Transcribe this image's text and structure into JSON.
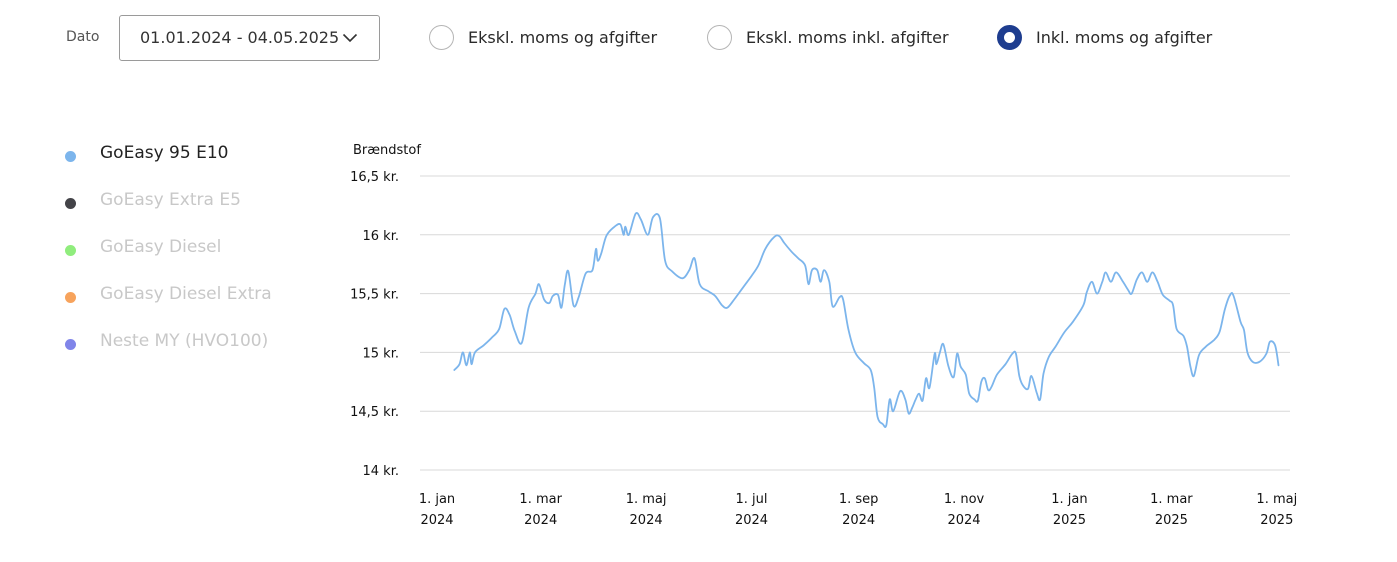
{
  "toolbar": {
    "date_label": "Dato",
    "date_range_value": "01.01.2024 - 04.05.2025",
    "date_dropdown_icon": "chevron-down-icon",
    "radio_options": [
      {
        "label": "Ekskl. moms og afgifter",
        "checked": false
      },
      {
        "label": "Ekskl. moms inkl. afgifter",
        "checked": false
      },
      {
        "label": "Inkl. moms og afgifter",
        "checked": true
      }
    ],
    "accent_color": "#1e3d8f"
  },
  "legend": [
    {
      "label": "GoEasy 95 E10",
      "color": "#7cb5ec",
      "active": true
    },
    {
      "label": "GoEasy Extra E5",
      "color": "#434348",
      "active": false
    },
    {
      "label": "GoEasy Diesel",
      "color": "#90ed7d",
      "active": false
    },
    {
      "label": "GoEasy Diesel Extra",
      "color": "#f7a35c",
      "active": false
    },
    {
      "label": "Neste MY (HVO100)",
      "color": "#8085e9",
      "active": false
    }
  ],
  "chart_data": {
    "type": "line",
    "title": "Brændstof",
    "ylim": [
      14,
      16.5
    ],
    "yticks": [
      {
        "value": 16.5,
        "label": "16,5 kr."
      },
      {
        "value": 16,
        "label": "16 kr."
      },
      {
        "value": 15.5,
        "label": "15,5 kr."
      },
      {
        "value": 15,
        "label": "15 kr."
      },
      {
        "value": 14.5,
        "label": "14,5 kr."
      },
      {
        "value": 14,
        "label": "14 kr."
      }
    ],
    "xlim": [
      "2024-01-01",
      "2025-05-04"
    ],
    "xticks": [
      {
        "date": "2024-01-01",
        "label": [
          "1. jan",
          "2024"
        ]
      },
      {
        "date": "2024-03-01",
        "label": [
          "1. mar",
          "2024"
        ]
      },
      {
        "date": "2024-05-01",
        "label": [
          "1. maj",
          "2024"
        ]
      },
      {
        "date": "2024-07-01",
        "label": [
          "1. jul",
          "2024"
        ]
      },
      {
        "date": "2024-09-01",
        "label": [
          "1. sep",
          "2024"
        ]
      },
      {
        "date": "2024-11-01",
        "label": [
          "1. nov",
          "2024"
        ]
      },
      {
        "date": "2025-01-01",
        "label": [
          "1. jan",
          "2025"
        ]
      },
      {
        "date": "2025-03-01",
        "label": [
          "1. mar",
          "2025"
        ]
      },
      {
        "date": "2025-05-01",
        "label": [
          "1. maj",
          "2025"
        ]
      }
    ],
    "grid": true,
    "series": [
      {
        "name": "GoEasy 95 E10",
        "color": "#7cb5ec",
        "points": [
          [
            "2024-01-11",
            14.85
          ],
          [
            "2024-01-14",
            14.9
          ],
          [
            "2024-01-16",
            15.0
          ],
          [
            "2024-01-18",
            14.89
          ],
          [
            "2024-01-20",
            15.0
          ],
          [
            "2024-01-21",
            14.9
          ],
          [
            "2024-01-23",
            15.0
          ],
          [
            "2024-01-28",
            15.06
          ],
          [
            "2024-02-02",
            15.13
          ],
          [
            "2024-02-06",
            15.2
          ],
          [
            "2024-02-09",
            15.37
          ],
          [
            "2024-02-12",
            15.32
          ],
          [
            "2024-02-15",
            15.18
          ],
          [
            "2024-02-19",
            15.08
          ],
          [
            "2024-02-23",
            15.38
          ],
          [
            "2024-02-27",
            15.5
          ],
          [
            "2024-02-29",
            15.58
          ],
          [
            "2024-03-03",
            15.45
          ],
          [
            "2024-03-06",
            15.42
          ],
          [
            "2024-03-08",
            15.48
          ],
          [
            "2024-03-11",
            15.49
          ],
          [
            "2024-03-13",
            15.38
          ],
          [
            "2024-03-15",
            15.58
          ],
          [
            "2024-03-17",
            15.69
          ],
          [
            "2024-03-20",
            15.4
          ],
          [
            "2024-03-23",
            15.47
          ],
          [
            "2024-03-27",
            15.67
          ],
          [
            "2024-03-31",
            15.7
          ],
          [
            "2024-04-02",
            15.88
          ],
          [
            "2024-04-03",
            15.78
          ],
          [
            "2024-04-05",
            15.84
          ],
          [
            "2024-04-08",
            15.99
          ],
          [
            "2024-04-12",
            16.06
          ],
          [
            "2024-04-16",
            16.09
          ],
          [
            "2024-04-18",
            16.0
          ],
          [
            "2024-04-19",
            16.07
          ],
          [
            "2024-04-21",
            16.0
          ],
          [
            "2024-04-25",
            16.18
          ],
          [
            "2024-04-28",
            16.13
          ],
          [
            "2024-05-02",
            16.0
          ],
          [
            "2024-05-05",
            16.15
          ],
          [
            "2024-05-09",
            16.14
          ],
          [
            "2024-05-12",
            15.78
          ],
          [
            "2024-05-16",
            15.69
          ],
          [
            "2024-05-22",
            15.63
          ],
          [
            "2024-05-26",
            15.7
          ],
          [
            "2024-05-29",
            15.8
          ],
          [
            "2024-06-01",
            15.58
          ],
          [
            "2024-06-06",
            15.52
          ],
          [
            "2024-06-10",
            15.48
          ],
          [
            "2024-06-14",
            15.4
          ],
          [
            "2024-06-17",
            15.38
          ],
          [
            "2024-06-21",
            15.45
          ],
          [
            "2024-06-26",
            15.55
          ],
          [
            "2024-07-01",
            15.65
          ],
          [
            "2024-07-05",
            15.74
          ],
          [
            "2024-07-09",
            15.88
          ],
          [
            "2024-07-14",
            15.98
          ],
          [
            "2024-07-17",
            15.99
          ],
          [
            "2024-07-20",
            15.93
          ],
          [
            "2024-07-24",
            15.86
          ],
          [
            "2024-07-28",
            15.8
          ],
          [
            "2024-08-01",
            15.74
          ],
          [
            "2024-08-03",
            15.58
          ],
          [
            "2024-08-05",
            15.7
          ],
          [
            "2024-08-08",
            15.7
          ],
          [
            "2024-08-10",
            15.6
          ],
          [
            "2024-08-12",
            15.7
          ],
          [
            "2024-08-15",
            15.6
          ],
          [
            "2024-08-17",
            15.39
          ],
          [
            "2024-08-21",
            15.47
          ],
          [
            "2024-08-23",
            15.45
          ],
          [
            "2024-08-26",
            15.2
          ],
          [
            "2024-08-30",
            15.0
          ],
          [
            "2024-09-04",
            14.91
          ],
          [
            "2024-09-08",
            14.85
          ],
          [
            "2024-09-10",
            14.7
          ],
          [
            "2024-09-12",
            14.45
          ],
          [
            "2024-09-15",
            14.39
          ],
          [
            "2024-09-17",
            14.38
          ],
          [
            "2024-09-19",
            14.6
          ],
          [
            "2024-09-21",
            14.5
          ],
          [
            "2024-09-25",
            14.67
          ],
          [
            "2024-09-28",
            14.6
          ],
          [
            "2024-09-30",
            14.48
          ],
          [
            "2024-10-02",
            14.53
          ],
          [
            "2024-10-04",
            14.6
          ],
          [
            "2024-10-06",
            14.65
          ],
          [
            "2024-10-08",
            14.59
          ],
          [
            "2024-10-10",
            14.78
          ],
          [
            "2024-10-12",
            14.7
          ],
          [
            "2024-10-15",
            14.99
          ],
          [
            "2024-10-16",
            14.9
          ],
          [
            "2024-10-18",
            15.0
          ],
          [
            "2024-10-20",
            15.07
          ],
          [
            "2024-10-23",
            14.88
          ],
          [
            "2024-10-26",
            14.79
          ],
          [
            "2024-10-28",
            14.99
          ],
          [
            "2024-10-30",
            14.88
          ],
          [
            "2024-11-02",
            14.81
          ],
          [
            "2024-11-04",
            14.65
          ],
          [
            "2024-11-07",
            14.6
          ],
          [
            "2024-11-09",
            14.59
          ],
          [
            "2024-11-11",
            14.75
          ],
          [
            "2024-11-13",
            14.78
          ],
          [
            "2024-11-15",
            14.68
          ],
          [
            "2024-11-17",
            14.71
          ],
          [
            "2024-11-20",
            14.81
          ],
          [
            "2024-11-25",
            14.9
          ],
          [
            "2024-11-29",
            14.99
          ],
          [
            "2024-12-01",
            14.99
          ],
          [
            "2024-12-03",
            14.8
          ],
          [
            "2024-12-05",
            14.72
          ],
          [
            "2024-12-08",
            14.69
          ],
          [
            "2024-12-10",
            14.8
          ],
          [
            "2024-12-13",
            14.66
          ],
          [
            "2024-12-15",
            14.6
          ],
          [
            "2024-12-17",
            14.82
          ],
          [
            "2024-12-20",
            14.96
          ],
          [
            "2024-12-24",
            15.05
          ],
          [
            "2024-12-29",
            15.17
          ],
          [
            "2025-01-03",
            15.26
          ],
          [
            "2025-01-09",
            15.4
          ],
          [
            "2025-01-11",
            15.51
          ],
          [
            "2025-01-14",
            15.6
          ],
          [
            "2025-01-17",
            15.5
          ],
          [
            "2025-01-20",
            15.6
          ],
          [
            "2025-01-22",
            15.68
          ],
          [
            "2025-01-25",
            15.6
          ],
          [
            "2025-01-28",
            15.68
          ],
          [
            "2025-02-01",
            15.6
          ],
          [
            "2025-02-04",
            15.53
          ],
          [
            "2025-02-06",
            15.5
          ],
          [
            "2025-02-09",
            15.62
          ],
          [
            "2025-02-12",
            15.68
          ],
          [
            "2025-02-15",
            15.6
          ],
          [
            "2025-02-18",
            15.68
          ],
          [
            "2025-02-21",
            15.6
          ],
          [
            "2025-02-24",
            15.49
          ],
          [
            "2025-02-28",
            15.44
          ],
          [
            "2025-03-02",
            15.4
          ],
          [
            "2025-03-04",
            15.2
          ],
          [
            "2025-03-08",
            15.14
          ],
          [
            "2025-03-10",
            15.05
          ],
          [
            "2025-03-12",
            14.88
          ],
          [
            "2025-03-14",
            14.8
          ],
          [
            "2025-03-17",
            14.98
          ],
          [
            "2025-03-21",
            15.05
          ],
          [
            "2025-03-26",
            15.11
          ],
          [
            "2025-03-29",
            15.18
          ],
          [
            "2025-04-01",
            15.37
          ],
          [
            "2025-04-04",
            15.49
          ],
          [
            "2025-04-06",
            15.48
          ],
          [
            "2025-04-10",
            15.26
          ],
          [
            "2025-04-12",
            15.19
          ],
          [
            "2025-04-14",
            15.0
          ],
          [
            "2025-04-17",
            14.92
          ],
          [
            "2025-04-21",
            14.92
          ],
          [
            "2025-04-25",
            14.99
          ],
          [
            "2025-04-27",
            15.09
          ],
          [
            "2025-04-30",
            15.06
          ],
          [
            "2025-05-02",
            14.89
          ]
        ]
      }
    ]
  }
}
